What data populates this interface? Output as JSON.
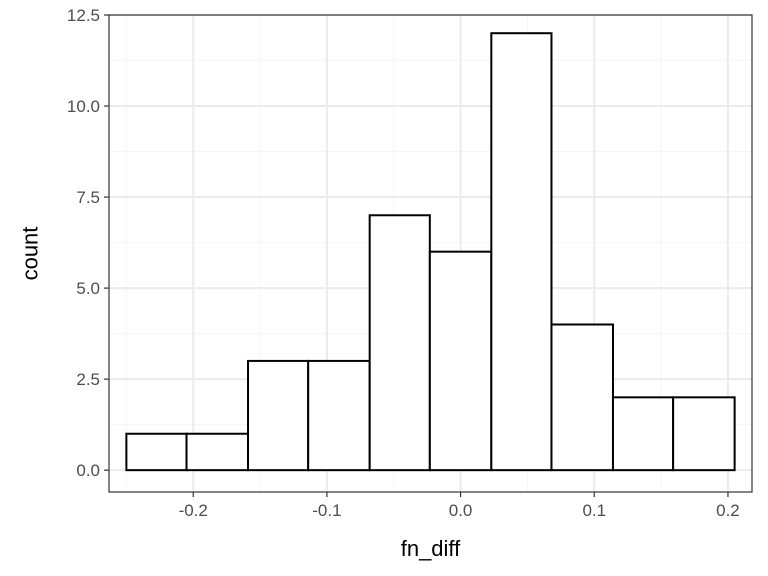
{
  "chart_data": {
    "type": "bar",
    "xlabel": "fn_diff",
    "ylabel": "count",
    "bins": [
      {
        "x0": -0.25,
        "x1": -0.205,
        "count": 1
      },
      {
        "x0": -0.205,
        "x1": -0.159,
        "count": 1
      },
      {
        "x0": -0.159,
        "x1": -0.114,
        "count": 3
      },
      {
        "x0": -0.114,
        "x1": -0.068,
        "count": 3
      },
      {
        "x0": -0.068,
        "x1": -0.023,
        "count": 7
      },
      {
        "x0": -0.023,
        "x1": 0.023,
        "count": 6
      },
      {
        "x0": 0.023,
        "x1": 0.068,
        "count": 12
      },
      {
        "x0": 0.068,
        "x1": 0.114,
        "count": 4
      },
      {
        "x0": 0.114,
        "x1": 0.159,
        "count": 2
      },
      {
        "x0": 0.159,
        "x1": 0.205,
        "count": 2
      }
    ],
    "xlim": [
      -0.263,
      0.218
    ],
    "ylim": [
      -0.6,
      12.5
    ],
    "x_ticks": [
      -0.2,
      -0.1,
      0.0,
      0.1,
      0.2
    ],
    "x_tick_labels": [
      "-0.2",
      "-0.1",
      "0.0",
      "0.1",
      "0.2"
    ],
    "y_ticks": [
      0,
      2.5,
      5,
      7.5,
      10,
      12.5
    ],
    "y_tick_labels": [
      "0.0",
      "2.5",
      "5.0",
      "7.5",
      "10.0",
      "12.5"
    ],
    "x_minor": [
      -0.25,
      -0.15,
      -0.05,
      0.05,
      0.15
    ],
    "y_minor": [
      1.25,
      3.75,
      6.25,
      8.75,
      11.25
    ],
    "grid": true,
    "theme": "bw",
    "colors": {
      "bar_fill": "#ffffff",
      "bar_stroke": "#000000",
      "grid_major": "#ebebeb",
      "grid_minor": "#f5f5f5",
      "panel_border": "#333333",
      "tick_text": "#4d4d4d"
    }
  }
}
